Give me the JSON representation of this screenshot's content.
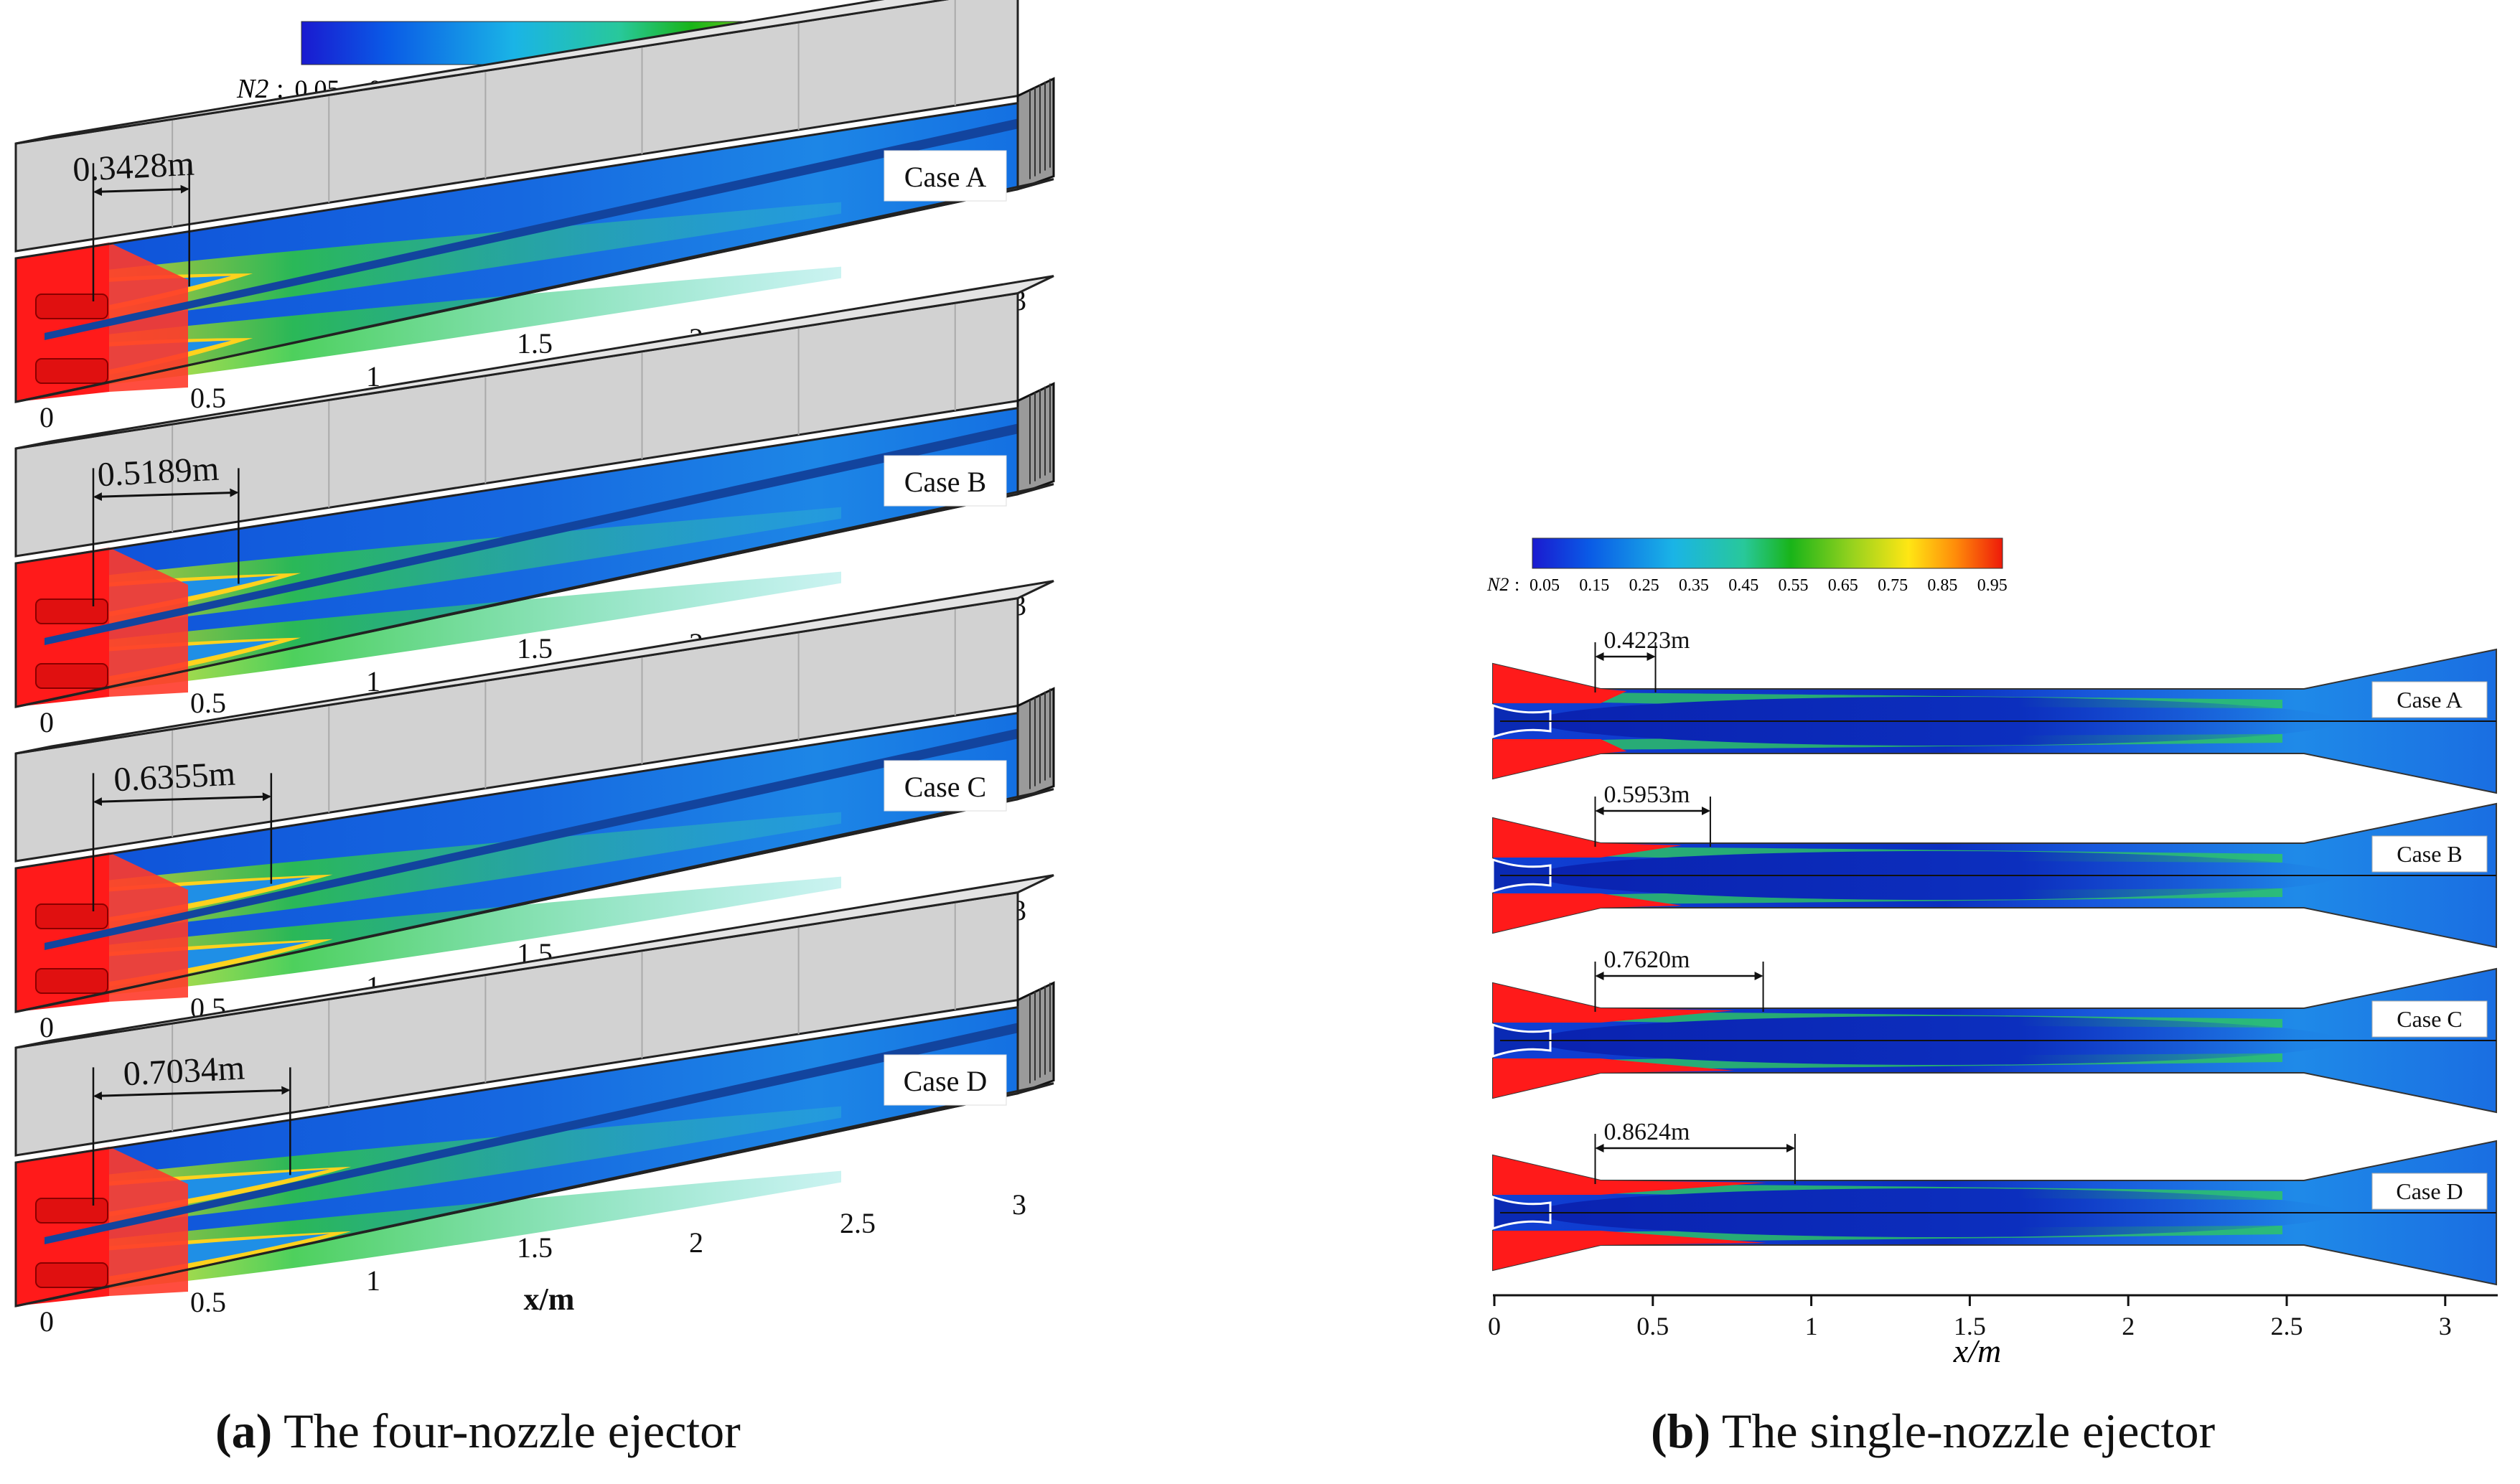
{
  "colorbar": {
    "symbol": "N2",
    "suffix": ":",
    "ticks": [
      "0.05",
      "0.15",
      "0.25",
      "0.35",
      "0.45",
      "0.55",
      "0.65",
      "0.75",
      "0.85",
      "0.95"
    ]
  },
  "panel_a": {
    "caption_label": "(a)",
    "caption_text": "The four-nozzle ejector",
    "x_ticks": [
      "0",
      "0.5",
      "1",
      "1.5",
      "2",
      "2.5",
      "3"
    ],
    "x_label": "x/m",
    "cases": [
      {
        "case": "Case A",
        "mixing_length": "0.3428m",
        "length_m": 0.3428
      },
      {
        "case": "Case B",
        "mixing_length": "0.5189m",
        "length_m": 0.5189
      },
      {
        "case": "Case C",
        "mixing_length": "0.6355m",
        "length_m": 0.6355
      },
      {
        "case": "Case D",
        "mixing_length": "0.7034m",
        "length_m": 0.7034
      }
    ]
  },
  "panel_b": {
    "caption_label": "(b)",
    "caption_text": "The single-nozzle ejector",
    "x_ticks": [
      "0",
      "0.5",
      "1",
      "1.5",
      "2",
      "2.5",
      "3"
    ],
    "x_label": "x/m",
    "cases": [
      {
        "case": "Case A",
        "mixing_length": "0.4223m",
        "length_m": 0.4223
      },
      {
        "case": "Case B",
        "mixing_length": "0.5953m",
        "length_m": 0.5953
      },
      {
        "case": "Case C",
        "mixing_length": "0.7620m",
        "length_m": 0.762
      },
      {
        "case": "Case D",
        "mixing_length": "0.8624m",
        "length_m": 0.8624
      }
    ]
  },
  "colors": {
    "jet_red": "#ff1a1a",
    "flow_blue": "#1462e0",
    "core_blue": "#0a28b4",
    "edge_green": "#2ec840",
    "wall_gray": "#cfcfcf"
  }
}
